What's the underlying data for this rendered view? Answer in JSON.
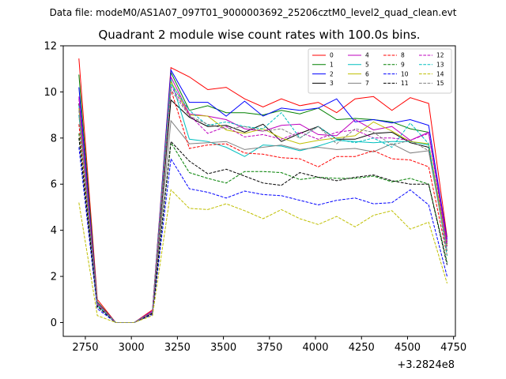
{
  "suptitle": "Data file: modeM0/AS1A07_097T01_9000003692_25206cztM0_level2_quad_clean.evt",
  "chart_data": {
    "type": "line",
    "title": "Quadrant 2 module wise count rates with 100.0s bins.",
    "xlabel": "",
    "ylabel": "",
    "x_offset_label": "+3.2824e8",
    "xlim": [
      2630,
      4760
    ],
    "ylim": [
      -0.6,
      12.0
    ],
    "x_ticks": [
      2750,
      3000,
      3250,
      3500,
      3750,
      4000,
      4250,
      4500,
      4750
    ],
    "x_tick_labels": [
      "2750",
      "3000",
      "3250",
      "3500",
      "3750",
      "4000",
      "4250",
      "4500",
      "4750"
    ],
    "y_ticks": [
      0,
      2,
      4,
      6,
      8,
      10,
      12
    ],
    "y_tick_labels": [
      "0",
      "2",
      "4",
      "6",
      "8",
      "10",
      "12"
    ],
    "grid": false,
    "legend_position": "top-right",
    "x": [
      2715,
      2815,
      2915,
      3015,
      3115,
      3215,
      3315,
      3415,
      3515,
      3615,
      3715,
      3815,
      3915,
      4015,
      4115,
      4215,
      4315,
      4415,
      4515,
      4615,
      4715
    ],
    "series": [
      {
        "name": "0",
        "color": "#ff0000",
        "dash": "solid",
        "values": [
          11.45,
          1.0,
          0.0,
          0.0,
          0.55,
          11.05,
          10.65,
          10.1,
          10.2,
          9.7,
          9.35,
          9.7,
          9.4,
          9.55,
          9.1,
          9.7,
          9.8,
          9.2,
          9.75,
          9.5,
          3.7
        ]
      },
      {
        "name": "1",
        "color": "#008000",
        "dash": "solid",
        "values": [
          10.75,
          0.9,
          0.0,
          0.0,
          0.5,
          10.85,
          9.2,
          9.4,
          9.1,
          9.1,
          9.0,
          9.2,
          9.05,
          9.3,
          8.8,
          8.85,
          8.8,
          8.7,
          8.4,
          8.25,
          3.5
        ]
      },
      {
        "name": "2",
        "color": "#0000ff",
        "dash": "solid",
        "values": [
          10.2,
          0.85,
          0.0,
          0.0,
          0.5,
          10.95,
          9.55,
          9.55,
          8.95,
          9.6,
          8.95,
          9.3,
          9.2,
          9.3,
          9.7,
          8.7,
          8.8,
          8.65,
          8.8,
          8.55,
          3.6
        ]
      },
      {
        "name": "3",
        "color": "#000000",
        "dash": "solid",
        "values": [
          9.5,
          0.8,
          0.0,
          0.0,
          0.45,
          9.65,
          8.9,
          8.5,
          8.55,
          8.25,
          8.6,
          7.85,
          8.2,
          8.5,
          7.95,
          7.95,
          8.2,
          8.25,
          7.8,
          7.6,
          3.4
        ]
      },
      {
        "name": "4",
        "color": "#bf00bf",
        "dash": "solid",
        "values": [
          9.8,
          0.85,
          0.0,
          0.0,
          0.5,
          10.65,
          9.05,
          8.95,
          8.8,
          8.4,
          8.3,
          8.55,
          8.6,
          8.15,
          8.1,
          8.8,
          8.35,
          8.5,
          7.9,
          8.25,
          3.5
        ]
      },
      {
        "name": "5",
        "color": "#00bfbf",
        "dash": "solid",
        "values": [
          9.4,
          0.8,
          0.0,
          0.0,
          0.45,
          10.55,
          7.95,
          7.85,
          7.6,
          7.2,
          7.7,
          7.65,
          7.45,
          7.65,
          7.9,
          7.85,
          7.8,
          7.85,
          7.85,
          7.7,
          3.3
        ]
      },
      {
        "name": "6",
        "color": "#bfbf00",
        "dash": "solid",
        "values": [
          9.3,
          0.8,
          0.0,
          0.0,
          0.45,
          10.45,
          9.0,
          8.95,
          8.35,
          8.2,
          8.4,
          8.0,
          7.75,
          7.9,
          8.0,
          8.1,
          8.7,
          8.3,
          7.85,
          7.75,
          3.3
        ]
      },
      {
        "name": "7",
        "color": "#808080",
        "dash": "solid",
        "values": [
          9.0,
          0.75,
          0.0,
          0.0,
          0.45,
          8.75,
          7.75,
          7.8,
          7.85,
          7.5,
          7.6,
          7.7,
          7.5,
          7.6,
          7.5,
          7.55,
          7.4,
          7.75,
          7.35,
          7.45,
          3.1
        ]
      },
      {
        "name": "8",
        "color": "#ff0000",
        "dash": "dashed",
        "values": [
          8.6,
          0.75,
          0.0,
          0.0,
          0.4,
          10.1,
          7.55,
          7.7,
          7.75,
          7.35,
          7.3,
          7.15,
          7.1,
          6.75,
          7.2,
          7.2,
          7.45,
          7.1,
          7.05,
          6.75,
          2.9
        ]
      },
      {
        "name": "9",
        "color": "#008000",
        "dash": "dashed",
        "values": [
          8.2,
          0.7,
          0.0,
          0.0,
          0.4,
          7.8,
          6.5,
          6.25,
          6.05,
          6.55,
          6.55,
          6.5,
          6.2,
          6.3,
          6.25,
          6.25,
          6.35,
          6.1,
          6.25,
          6.0,
          2.6
        ]
      },
      {
        "name": "10",
        "color": "#0000ff",
        "dash": "dashed",
        "values": [
          7.6,
          0.6,
          0.0,
          0.0,
          0.35,
          7.1,
          5.8,
          5.65,
          5.4,
          5.7,
          5.55,
          5.5,
          5.3,
          5.1,
          5.3,
          5.4,
          5.15,
          5.2,
          5.75,
          5.1,
          2.0
        ]
      },
      {
        "name": "11",
        "color": "#000000",
        "dash": "dashed",
        "values": [
          8.0,
          0.7,
          0.0,
          0.0,
          0.4,
          7.85,
          7.0,
          6.45,
          6.65,
          6.35,
          6.05,
          5.95,
          6.5,
          6.3,
          6.15,
          6.3,
          6.4,
          6.15,
          6.0,
          6.0,
          2.5
        ]
      },
      {
        "name": "12",
        "color": "#bf00bf",
        "dash": "dashed",
        "values": [
          9.7,
          0.8,
          0.0,
          0.0,
          0.45,
          10.25,
          9.0,
          8.2,
          8.5,
          8.05,
          8.15,
          7.95,
          8.25,
          7.95,
          8.25,
          8.35,
          8.0,
          8.0,
          7.9,
          8.2,
          3.3
        ]
      },
      {
        "name": "13",
        "color": "#00bfbf",
        "dash": "dashed",
        "values": [
          9.0,
          0.75,
          0.0,
          0.0,
          0.45,
          10.35,
          9.2,
          8.55,
          8.7,
          8.5,
          8.4,
          9.1,
          8.0,
          8.5,
          7.95,
          7.8,
          8.0,
          7.6,
          8.65,
          7.75,
          2.9
        ]
      },
      {
        "name": "14",
        "color": "#bfbf00",
        "dash": "dashed",
        "values": [
          5.2,
          0.3,
          0.0,
          0.0,
          0.3,
          5.75,
          4.95,
          4.9,
          5.15,
          4.85,
          4.5,
          4.9,
          4.5,
          4.25,
          4.6,
          4.15,
          4.65,
          4.85,
          4.05,
          4.35,
          1.7
        ]
      },
      {
        "name": "15",
        "color": "#808080",
        "dash": "dashed",
        "values": [
          9.2,
          0.8,
          0.0,
          0.0,
          0.45,
          10.1,
          8.95,
          8.6,
          8.4,
          8.5,
          8.3,
          8.4,
          8.0,
          8.5,
          7.75,
          8.4,
          8.25,
          7.7,
          7.9,
          7.45,
          3.1
        ]
      }
    ]
  }
}
